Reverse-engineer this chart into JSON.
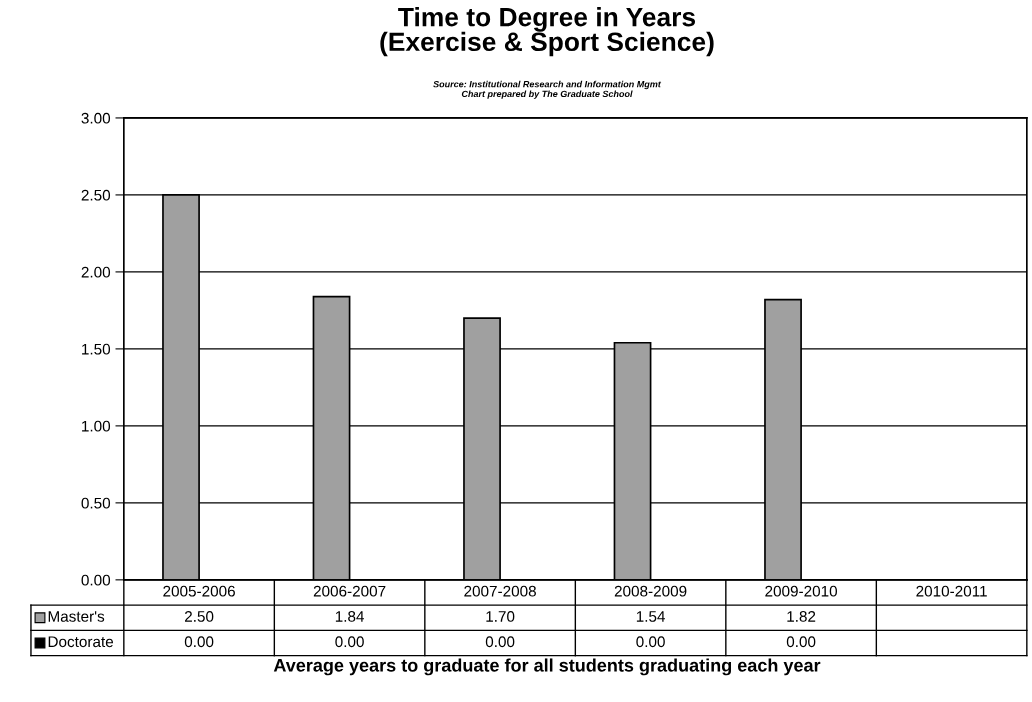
{
  "chart_data": {
    "type": "bar",
    "title": "Time to Degree in Years\n(Exercise & Sport Science)",
    "subtitle": "Source: Institutional Research and Information Mgmt\nChart prepared by The Graduate School",
    "xlabel": "Average years to graduate for all students graduating each year",
    "categories": [
      "2005-2006",
      "2006-2007",
      "2007-2008",
      "2008-2009",
      "2009-2010",
      "2010-2011"
    ],
    "series": [
      {
        "name": "Master's",
        "color": "#a0a0a0",
        "values": [
          2.5,
          1.84,
          1.7,
          1.54,
          1.82,
          null
        ],
        "value_labels": [
          "2.50",
          "1.84",
          "1.70",
          "1.54",
          "1.82",
          null
        ]
      },
      {
        "name": "Doctorate",
        "color": "#000000",
        "values": [
          0.0,
          0.0,
          0.0,
          0.0,
          0.0,
          null
        ],
        "value_labels": [
          "0.00",
          "0.00",
          "0.00",
          "0.00",
          "0.00",
          null
        ]
      }
    ],
    "ylim": [
      0,
      3
    ],
    "yticks": [
      {
        "value": 0,
        "label": "0.00"
      },
      {
        "value": 0.5,
        "label": "0.50"
      },
      {
        "value": 1,
        "label": "1.00"
      },
      {
        "value": 1.5,
        "label": "1.50"
      },
      {
        "value": 2,
        "label": "2.00"
      },
      {
        "value": 2.5,
        "label": "2.50"
      },
      {
        "value": 3,
        "label": "3.00"
      }
    ],
    "grid": "y",
    "legend": "bottom left"
  }
}
